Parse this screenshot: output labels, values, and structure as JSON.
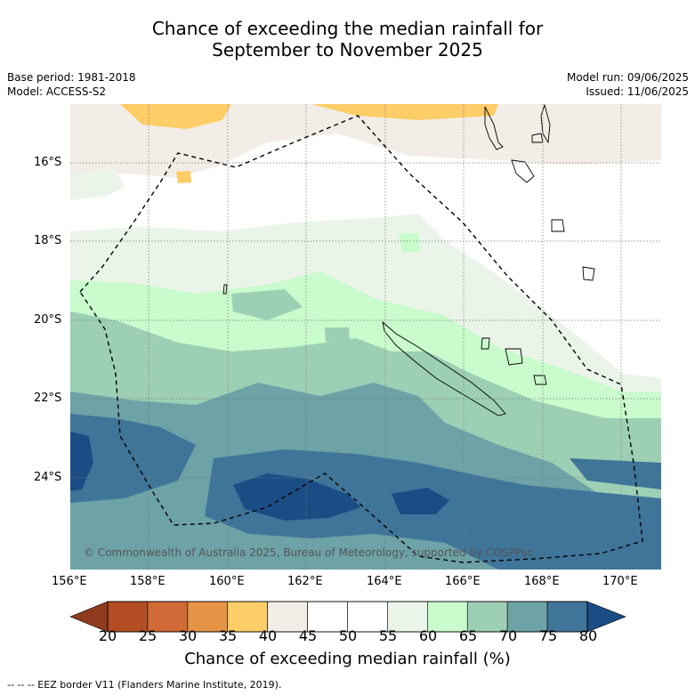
{
  "title": {
    "line1": "Chance of exceeding the median rainfall for",
    "line2": "September to November 2025"
  },
  "meta": {
    "base_period": "Base period: 1981-2018",
    "model": "Model: ACCESS-S2",
    "model_run": "Model run: 09/06/2025",
    "issued": "Issued: 11/06/2025"
  },
  "map": {
    "lat_labels": [
      "16°S",
      "18°S",
      "20°S",
      "22°S",
      "24°S"
    ],
    "lon_labels": [
      "156°E",
      "158°E",
      "160°E",
      "162°E",
      "164°E",
      "166°E",
      "168°E",
      "170°E"
    ],
    "copyright": "© Commonwealth of Australia 2025, Bureau of Meteorology, supported by COSPPac",
    "eez_line_color": "#000000"
  },
  "colorbar": {
    "labels": [
      "20",
      "25",
      "30",
      "35",
      "40",
      "45",
      "50",
      "55",
      "60",
      "65",
      "70",
      "75",
      "80"
    ],
    "colors": [
      "#8f3a1e",
      "#b34d23",
      "#d06a36",
      "#e59447",
      "#fdcd68",
      "#f2ede6",
      "#ffffff",
      "#ffffff",
      "#eaf4e9",
      "#c9fbcc",
      "#9dcfb5",
      "#6da2a6",
      "#3f7599",
      "#1b4d85"
    ],
    "title": "Chance of exceeding median rainfall (%)"
  },
  "footer": {
    "legend": "-- -- -- EEZ border V11 (Flanders Marine Institute, 2019)."
  }
}
